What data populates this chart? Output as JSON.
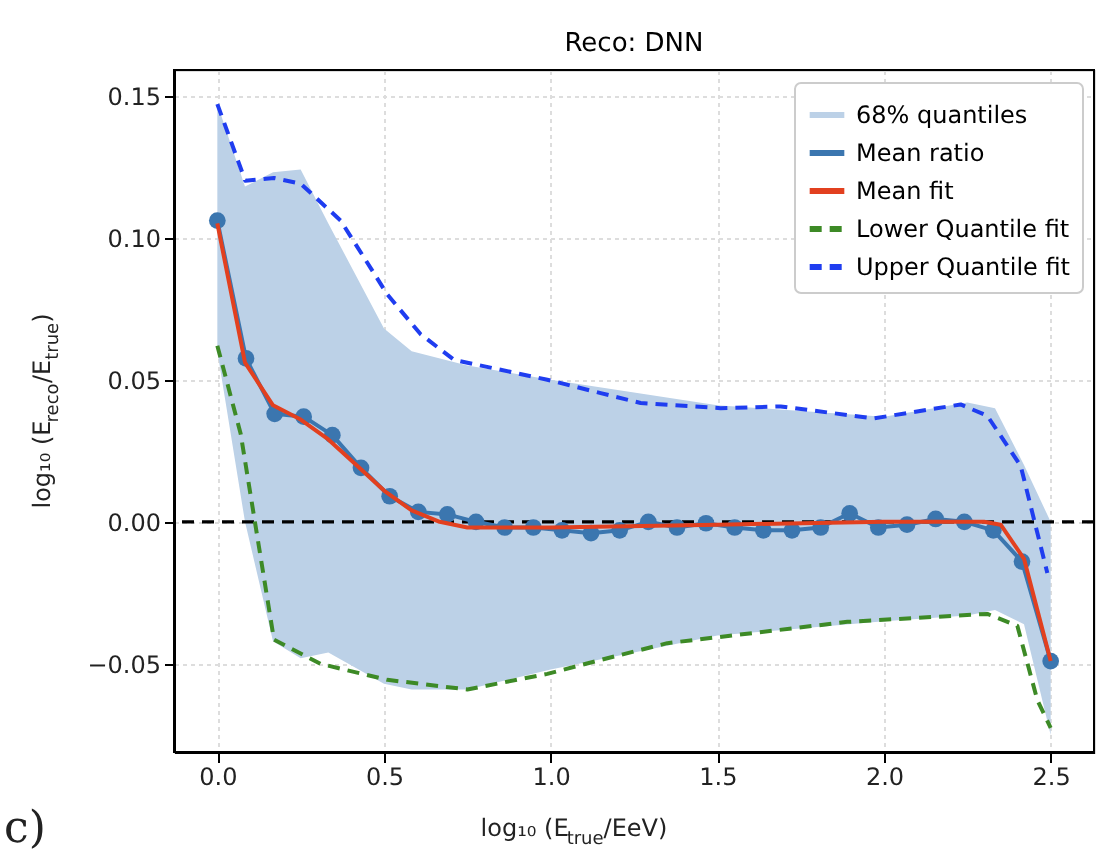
{
  "chart_data": {
    "type": "line",
    "title": "Reco: DNN",
    "xlabel": "log₁₀ (E$_{true}$/EeV)",
    "ylabel": "log₁₀ (E$_{reco}$/E$_{true}$)",
    "xlim": [
      -0.13,
      2.63
    ],
    "ylim": [
      -0.081,
      0.159
    ],
    "xticks": [
      {
        "value": 0,
        "label": "0.0"
      },
      {
        "value": 0.5,
        "label": "0.5"
      },
      {
        "value": 1,
        "label": "1.0"
      },
      {
        "value": 1.5,
        "label": "1.5"
      },
      {
        "value": 2,
        "label": "2.0"
      },
      {
        "value": 2.5,
        "label": "2.5"
      }
    ],
    "yticks": [
      {
        "value": -0.05,
        "label": "−0.05"
      },
      {
        "value": 0,
        "label": "0.00"
      },
      {
        "value": 0.05,
        "label": "0.05"
      },
      {
        "value": 0.1,
        "label": "0.10"
      },
      {
        "value": 0.15,
        "label": "0.15"
      }
    ],
    "grid": true,
    "legend": "top right",
    "series": [
      {
        "name": "68% quantiles",
        "type": "area",
        "color": "#bcd1e7",
        "x": [
          0,
          0.083,
          0.167,
          0.25,
          0.333,
          0.5,
          0.583,
          0.75,
          1.0,
          1.5,
          2.0,
          2.25,
          2.333,
          2.42,
          2.5
        ],
        "values": [
          null,
          null,
          null,
          null,
          null,
          null,
          null,
          null,
          null,
          null,
          null,
          null,
          null,
          null,
          null
        ],
        "lower": [
          0.06,
          0.0,
          -0.042,
          -0.048,
          -0.046,
          -0.057,
          -0.059,
          -0.059,
          -0.052,
          -0.04,
          -0.035,
          -0.033,
          -0.031,
          -0.036,
          -0.075
        ],
        "upper": [
          0.147,
          0.118,
          0.123,
          0.124,
          0.105,
          0.068,
          0.06,
          0.055,
          0.05,
          0.041,
          0.037,
          0.042,
          0.04,
          0.02,
          0.0
        ]
      },
      {
        "name": "Mean ratio",
        "marker": "circle",
        "color": "#3b76af",
        "x": [
          0,
          0.086,
          0.172,
          0.259,
          0.345,
          0.431,
          0.517,
          0.603,
          0.69,
          0.776,
          0.862,
          0.948,
          1.034,
          1.121,
          1.207,
          1.293,
          1.379,
          1.466,
          1.552,
          1.638,
          1.724,
          1.81,
          1.897,
          1.983,
          2.069,
          2.155,
          2.241,
          2.328,
          2.414,
          2.5
        ],
        "values": [
          0.106,
          0.0575,
          0.038,
          0.037,
          0.0305,
          0.019,
          0.009,
          0.0035,
          0.0026,
          0.0,
          -0.002,
          -0.002,
          -0.003,
          -0.004,
          -0.003,
          0.0,
          -0.002,
          -0.0005,
          -0.002,
          -0.003,
          -0.003,
          -0.002,
          0.003,
          -0.002,
          -0.001,
          0.001,
          0.0,
          -0.003,
          -0.014,
          -0.049
        ]
      },
      {
        "name": "Mean fit",
        "color": "#e2401f",
        "line_style": "solid",
        "x": [
          0,
          0.083,
          0.167,
          0.25,
          0.333,
          0.417,
          0.5,
          0.583,
          0.667,
          0.75,
          1.0,
          1.5,
          2.0,
          2.3,
          2.35,
          2.42,
          2.5
        ],
        "values": [
          0.105,
          0.056,
          0.041,
          0.036,
          0.029,
          0.02,
          0.011,
          0.004,
          0.0,
          -0.002,
          -0.002,
          -0.001,
          0.0,
          0.0,
          -0.001,
          -0.013,
          -0.049
        ]
      },
      {
        "name": "Lower Quantile fit",
        "color": "#3d8a26",
        "line_style": "dashed",
        "x": [
          0,
          0.07,
          0.17,
          0.31,
          0.51,
          0.75,
          0.99,
          1.15,
          1.35,
          1.89,
          2.31,
          2.4,
          2.46,
          2.5
        ],
        "values": [
          0.062,
          0.031,
          -0.0415,
          -0.05,
          -0.0556,
          -0.059,
          -0.0535,
          -0.0486,
          -0.0427,
          -0.0352,
          -0.0324,
          -0.0366,
          -0.0627,
          -0.0725
        ]
      },
      {
        "name": "Upper Quantile fit",
        "color": "#1f3df0",
        "line_style": "dashed",
        "x": [
          0,
          0.084,
          0.17,
          0.25,
          0.37,
          0.51,
          0.61,
          0.71,
          0.85,
          0.99,
          1.15,
          1.27,
          1.51,
          1.69,
          1.97,
          2.23,
          2.31,
          2.41,
          2.49
        ],
        "values": [
          0.147,
          0.12,
          0.121,
          0.119,
          0.106,
          0.08,
          0.066,
          0.057,
          0.0535,
          0.05,
          0.0453,
          0.0418,
          0.04,
          0.0406,
          0.0364,
          0.0413,
          0.0373,
          0.0197,
          -0.018
        ]
      }
    ],
    "ref_lines": [
      {
        "axis": "y",
        "value": 0,
        "color": "#000000",
        "line_style": "dashed"
      }
    ],
    "annotations": [
      "c)"
    ]
  }
}
